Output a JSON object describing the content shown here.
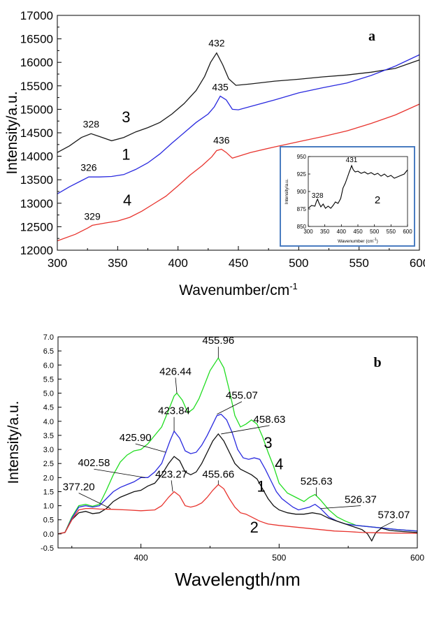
{
  "chart_data": [
    {
      "panel": "a",
      "type": "line",
      "xlabel": "Wavenumber/cm",
      "xlabel_sup": "-1",
      "ylabel": "Intensity/a.u.",
      "xlim": [
        300,
        600
      ],
      "ylim": [
        12000,
        17000
      ],
      "xticks": [
        300,
        350,
        400,
        450,
        500,
        550,
        600
      ],
      "yticks": [
        12000,
        12500,
        13000,
        13500,
        14000,
        14500,
        15000,
        15500,
        16000,
        16500,
        17000
      ],
      "grid": false,
      "series": [
        {
          "name": "3",
          "color": "#1a1a1a",
          "x": [
            300,
            310,
            320,
            328,
            335,
            345,
            355,
            365,
            375,
            385,
            395,
            405,
            415,
            422,
            427,
            432,
            437,
            442,
            448,
            460,
            480,
            500,
            520,
            540,
            560,
            580,
            600
          ],
          "y": [
            14080,
            14220,
            14400,
            14480,
            14420,
            14330,
            14400,
            14520,
            14610,
            14720,
            14900,
            15120,
            15400,
            15700,
            16000,
            16200,
            15950,
            15650,
            15510,
            15540,
            15600,
            15640,
            15690,
            15730,
            15790,
            15870,
            16050
          ]
        },
        {
          "name": "1",
          "color": "#2a2adf",
          "x": [
            300,
            310,
            320,
            326,
            335,
            345,
            355,
            365,
            375,
            385,
            395,
            405,
            415,
            425,
            430,
            435,
            440,
            445,
            450,
            460,
            480,
            500,
            520,
            540,
            560,
            580,
            600
          ],
          "y": [
            13200,
            13350,
            13480,
            13560,
            13560,
            13570,
            13610,
            13720,
            13860,
            14050,
            14280,
            14500,
            14720,
            14900,
            15050,
            15280,
            15200,
            15000,
            14990,
            15060,
            15200,
            15350,
            15460,
            15560,
            15720,
            15920,
            16160
          ]
        },
        {
          "name": "4",
          "color": "#e8342e",
          "x": [
            300,
            315,
            325,
            329,
            340,
            350,
            360,
            370,
            380,
            390,
            400,
            410,
            420,
            428,
            432,
            436,
            440,
            445,
            450,
            460,
            480,
            500,
            520,
            540,
            560,
            580,
            600
          ],
          "y": [
            12200,
            12340,
            12470,
            12530,
            12580,
            12620,
            12700,
            12830,
            12990,
            13150,
            13370,
            13600,
            13800,
            13990,
            14120,
            14150,
            14080,
            13960,
            14000,
            14080,
            14200,
            14310,
            14420,
            14540,
            14700,
            14880,
            15110
          ]
        }
      ],
      "annotations": [
        {
          "text": "432",
          "x": 432,
          "y": 16250
        },
        {
          "text": "435",
          "x": 435,
          "y": 15310
        },
        {
          "text": "436",
          "x": 436,
          "y": 14180
        },
        {
          "text": "328",
          "x": 328,
          "y": 14520
        },
        {
          "text": "326",
          "x": 326,
          "y": 13600
        },
        {
          "text": "329",
          "x": 329,
          "y": 12560
        }
      ],
      "curve_labels": [
        {
          "text": "3",
          "x": 357,
          "y": 14720
        },
        {
          "text": "1",
          "x": 357,
          "y": 13930
        },
        {
          "text": "4",
          "x": 358,
          "y": 12950
        }
      ],
      "panel_label": "a",
      "inset": {
        "xlabel": "Wavenumber (cm",
        "xlabel_sup": "-1",
        "xlabel_close": ")",
        "ylabel": "Intensity/a.u.",
        "xlim": [
          300,
          600
        ],
        "ylim": [
          850,
          950
        ],
        "xticks": [
          300,
          350,
          400,
          450,
          500,
          550,
          600
        ],
        "yticks": [
          850,
          875,
          900,
          925,
          950
        ],
        "series_label": "2",
        "peak_labels": [
          {
            "text": "431",
            "x": 431,
            "y": 939
          },
          {
            "text": "328",
            "x": 328,
            "y": 888
          }
        ],
        "series": {
          "color": "#000000",
          "x": [
            300,
            310,
            320,
            325,
            328,
            332,
            338,
            345,
            352,
            360,
            368,
            375,
            382,
            390,
            398,
            405,
            412,
            418,
            424,
            428,
            431,
            436,
            442,
            450,
            460,
            470,
            480,
            490,
            500,
            510,
            520,
            530,
            540,
            550,
            560,
            570,
            580,
            590,
            600
          ],
          "y": [
            876,
            880,
            879,
            886,
            889,
            884,
            878,
            882,
            876,
            879,
            876,
            880,
            885,
            883,
            890,
            905,
            912,
            920,
            928,
            933,
            937,
            931,
            928,
            929,
            926,
            928,
            925,
            927,
            924,
            926,
            922,
            925,
            921,
            923,
            919,
            921,
            923,
            925,
            931
          ]
        }
      }
    },
    {
      "panel": "b",
      "type": "line",
      "xlabel": "Wavelength/nm",
      "ylabel": "Intensity/a.u.",
      "xlim": [
        340,
        600
      ],
      "ylim": [
        -0.5,
        7.0
      ],
      "xticks": [
        400,
        500,
        600
      ],
      "yticks": [
        -0.5,
        0.0,
        0.5,
        1.0,
        1.5,
        2.0,
        2.5,
        3.0,
        3.5,
        4.0,
        4.5,
        5.0,
        5.5,
        6.0,
        6.5,
        7.0
      ],
      "grid": false,
      "series": [
        {
          "name": "3",
          "color": "#22dd22",
          "x": [
            340,
            345,
            350,
            355,
            360,
            365,
            370,
            375,
            380,
            385,
            390,
            395,
            400,
            405,
            410,
            415,
            420,
            424,
            426,
            430,
            434,
            438,
            442,
            446,
            450,
            456,
            460,
            464,
            468,
            472,
            476,
            480,
            484,
            488,
            492,
            496,
            500,
            506,
            512,
            518,
            522,
            526,
            530,
            536,
            542,
            548,
            556,
            566,
            576,
            586,
            600
          ],
          "y": [
            0.0,
            0.05,
            0.6,
            1.0,
            1.05,
            0.98,
            1.05,
            1.55,
            2.1,
            2.55,
            2.8,
            2.95,
            3.0,
            3.2,
            3.5,
            3.8,
            4.4,
            4.9,
            5.0,
            4.75,
            4.3,
            4.45,
            4.8,
            5.3,
            5.8,
            6.25,
            5.9,
            5.1,
            4.2,
            3.8,
            3.9,
            4.05,
            3.9,
            3.45,
            2.9,
            2.4,
            1.8,
            1.45,
            1.3,
            1.15,
            1.3,
            1.4,
            1.2,
            0.85,
            0.6,
            0.45,
            0.3,
            0.25,
            0.2,
            0.15,
            0.1
          ]
        },
        {
          "name": "1",
          "color": "#2a2adf",
          "x": [
            340,
            345,
            350,
            355,
            360,
            365,
            370,
            375,
            380,
            385,
            390,
            395,
            400,
            405,
            410,
            415,
            418,
            421,
            424,
            428,
            432,
            436,
            440,
            444,
            448,
            452,
            455,
            458,
            462,
            466,
            470,
            474,
            478,
            482,
            486,
            490,
            494,
            498,
            502,
            506,
            510,
            514,
            518,
            522,
            526,
            530,
            536,
            542,
            548,
            556,
            566,
            576,
            586,
            600
          ],
          "y": [
            0.0,
            0.05,
            0.55,
            0.95,
            1.0,
            0.95,
            1.0,
            1.25,
            1.5,
            1.65,
            1.75,
            1.85,
            2.0,
            2.0,
            2.2,
            2.5,
            2.9,
            3.3,
            3.65,
            3.4,
            2.95,
            2.85,
            2.9,
            3.15,
            3.5,
            3.9,
            4.2,
            4.25,
            4.05,
            3.6,
            3.0,
            2.7,
            2.65,
            2.7,
            2.65,
            2.3,
            1.9,
            1.5,
            1.25,
            1.1,
            0.95,
            0.85,
            0.9,
            0.95,
            1.05,
            0.9,
            0.6,
            0.45,
            0.35,
            0.3,
            0.25,
            0.2,
            0.15,
            0.1
          ]
        },
        {
          "name": "4",
          "color": "#111111",
          "x": [
            340,
            345,
            350,
            355,
            360,
            365,
            370,
            375,
            380,
            385,
            390,
            395,
            400,
            405,
            410,
            415,
            420,
            424,
            428,
            432,
            436,
            440,
            444,
            448,
            452,
            456,
            460,
            464,
            468,
            472,
            476,
            480,
            484,
            488,
            492,
            496,
            500,
            506,
            512,
            518,
            524,
            530,
            536,
            542,
            548,
            554,
            560,
            564,
            567,
            570,
            574,
            580,
            590,
            600
          ],
          "y": [
            0.0,
            0.05,
            0.5,
            0.75,
            0.8,
            0.72,
            0.75,
            0.9,
            1.15,
            1.3,
            1.4,
            1.5,
            1.55,
            1.7,
            1.8,
            2.1,
            2.5,
            2.75,
            2.6,
            2.2,
            2.1,
            2.2,
            2.5,
            2.9,
            3.3,
            3.55,
            3.3,
            2.9,
            2.5,
            2.3,
            2.2,
            2.1,
            1.95,
            1.6,
            1.25,
            1.0,
            0.85,
            0.75,
            0.7,
            0.7,
            0.75,
            0.7,
            0.55,
            0.45,
            0.35,
            0.25,
            0.15,
            0.0,
            -0.25,
            0.05,
            0.2,
            0.12,
            0.08,
            0.05
          ]
        },
        {
          "name": "2",
          "color": "#e8342e",
          "x": [
            340,
            345,
            350,
            355,
            360,
            365,
            370,
            380,
            390,
            400,
            410,
            415,
            420,
            424,
            428,
            432,
            436,
            440,
            444,
            448,
            452,
            456,
            460,
            464,
            468,
            472,
            476,
            480,
            486,
            492,
            500,
            510,
            520,
            530,
            540,
            550,
            560,
            570,
            580,
            600
          ],
          "y": [
            0.0,
            0.05,
            0.5,
            0.85,
            0.9,
            0.9,
            0.88,
            0.87,
            0.85,
            0.82,
            0.85,
            1.0,
            1.3,
            1.5,
            1.35,
            1.0,
            0.95,
            1.0,
            1.1,
            1.3,
            1.55,
            1.75,
            1.6,
            1.25,
            0.95,
            0.75,
            0.7,
            0.6,
            0.45,
            0.35,
            0.3,
            0.25,
            0.2,
            0.15,
            0.1,
            0.08,
            0.05,
            0.04,
            0.03,
            0.02
          ]
        }
      ],
      "annotations": [
        {
          "text": "455.96",
          "x": 456,
          "y": 6.25,
          "label_x": 456,
          "label_y": 6.75
        },
        {
          "text": "426.44",
          "x": 426,
          "y": 5.0,
          "label_x": 425,
          "label_y": 5.65
        },
        {
          "text": "455.07",
          "x": 455,
          "y": 4.25,
          "label_x": 473,
          "label_y": 4.8
        },
        {
          "text": "423.84",
          "x": 424,
          "y": 3.65,
          "label_x": 424,
          "label_y": 4.25
        },
        {
          "text": "458.63",
          "x": 458,
          "y": 3.55,
          "label_x": 493,
          "label_y": 3.95
        },
        {
          "text": "425.90",
          "x": 418,
          "y": 2.9,
          "label_x": 396,
          "label_y": 3.3
        },
        {
          "text": "402.58",
          "x": 403,
          "y": 2.0,
          "label_x": 366,
          "label_y": 2.4
        },
        {
          "text": "377.20",
          "x": 378,
          "y": 0.9,
          "label_x": 355,
          "label_y": 1.55
        },
        {
          "text": "423.27",
          "x": 423,
          "y": 1.5,
          "label_x": 422,
          "label_y": 2.0
        },
        {
          "text": "455.66",
          "x": 456,
          "y": 1.75,
          "label_x": 456,
          "label_y": 2.0
        },
        {
          "text": "525.63",
          "x": 527,
          "y": 1.35,
          "label_x": 527,
          "label_y": 1.75
        },
        {
          "text": "526.37",
          "x": 530,
          "y": 0.9,
          "label_x": 559,
          "label_y": 1.1
        },
        {
          "text": "573.07",
          "x": 573,
          "y": 0.2,
          "label_x": 583,
          "label_y": 0.55
        }
      ],
      "curve_labels": [
        {
          "text": "3",
          "x": 492,
          "y": 3.05
        },
        {
          "text": "4",
          "x": 500,
          "y": 2.3
        },
        {
          "text": "1",
          "x": 487,
          "y": 1.5
        },
        {
          "text": "2",
          "x": 482,
          "y": 0.05
        }
      ],
      "panel_label": "b"
    }
  ]
}
